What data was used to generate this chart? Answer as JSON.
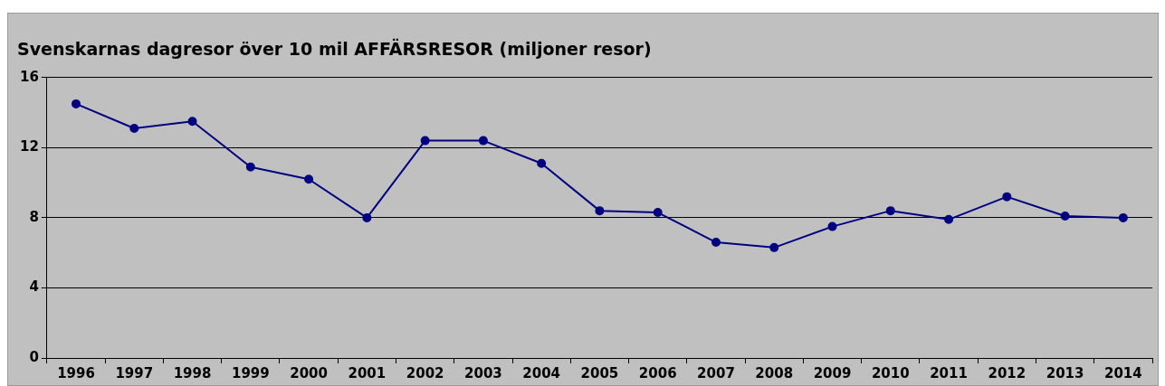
{
  "chart_data": {
    "type": "line",
    "title": "Svenskarnas dagresor över 10 mil AFFÄRSRESOR (miljoner resor)",
    "categories": [
      "1996",
      "1997",
      "1998",
      "1999",
      "2000",
      "2001",
      "2002",
      "2003",
      "2004",
      "2005",
      "2006",
      "2007",
      "2008",
      "2009",
      "2010",
      "2011",
      "2012",
      "2013",
      "2014"
    ],
    "series": [
      {
        "color": "#000080",
        "values": [
          14.5,
          13.1,
          13.5,
          10.9,
          10.2,
          8.0,
          12.4,
          12.4,
          11.1,
          8.4,
          8.3,
          6.6,
          6.3,
          7.5,
          8.4,
          7.9,
          9.2,
          8.1,
          8.0
        ]
      }
    ],
    "ylim": [
      0,
      16
    ],
    "yticks": [
      0,
      4,
      8,
      12,
      16
    ],
    "grid": "y",
    "legend": false,
    "marker": "circle",
    "line_style": "solid"
  }
}
